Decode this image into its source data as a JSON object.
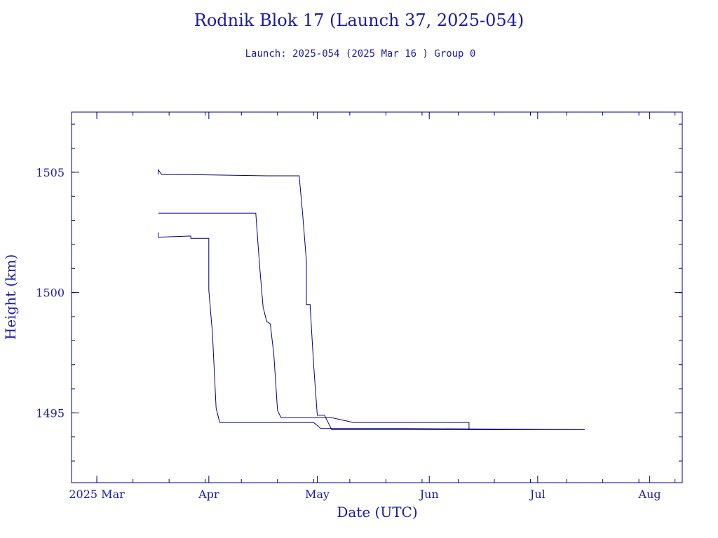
{
  "chart_data": {
    "type": "line",
    "title": "Rodnik Blok 17 (Launch 37, 2025-054)",
    "subtitle": "Launch: 2025-054  (2025 Mar 16 )  Group 0",
    "xlabel": "Date (UTC)",
    "ylabel": "Height (km)",
    "xlim": [
      "2025-02-22",
      "2025-08-10"
    ],
    "ylim": [
      1492.1,
      1507.5
    ],
    "x_ticks": [
      "2025-03-01",
      "2025-04-01",
      "2025-05-01",
      "2025-06-01",
      "2025-07-01",
      "2025-08-01"
    ],
    "x_tick_labels": [
      "2025 Mar",
      "Apr",
      "May",
      "Jun",
      "Jul",
      "Aug"
    ],
    "y_ticks": [
      1495,
      1500,
      1505
    ],
    "y_tick_labels": [
      "1495",
      "1500",
      "1505"
    ],
    "grid": false,
    "color": "#00008b",
    "series": [
      {
        "x": [
          "2025-03-18",
          "2025-03-18",
          "2025-03-19",
          "2025-03-27",
          "2025-04-17",
          "2025-04-26",
          "2025-04-27",
          "2025-04-28",
          "2025-04-28",
          "2025-04-29",
          "2025-04-30",
          "2025-05-01",
          "2025-05-03",
          "2025-05-05",
          "2025-06-12",
          "2025-07-14"
        ],
        "y": [
          1504.9,
          1505.1,
          1504.9,
          1504.9,
          1504.85,
          1504.85,
          1503.2,
          1501.3,
          1499.5,
          1499.5,
          1497.0,
          1494.9,
          1494.9,
          1494.3,
          1494.3,
          1494.3
        ]
      },
      {
        "x": [
          "2025-03-18",
          "2025-03-29",
          "2025-04-14",
          "2025-04-15",
          "2025-04-16",
          "2025-04-17",
          "2025-04-18",
          "2025-04-19",
          "2025-04-20",
          "2025-04-21",
          "2025-05-05",
          "2025-05-11",
          "2025-06-12",
          "2025-06-12"
        ],
        "y": [
          1503.3,
          1503.3,
          1503.3,
          1501.2,
          1499.4,
          1498.8,
          1498.7,
          1497.4,
          1495.1,
          1494.8,
          1494.8,
          1494.6,
          1494.6,
          1494.3
        ]
      },
      {
        "x": [
          "2025-03-18",
          "2025-03-18",
          "2025-03-27",
          "2025-03-27",
          "2025-04-01",
          "2025-04-01",
          "2025-04-02",
          "2025-04-03",
          "2025-04-04",
          "2025-04-05",
          "2025-04-30",
          "2025-05-02",
          "2025-05-26",
          "2025-07-14"
        ],
        "y": [
          1502.5,
          1502.3,
          1502.35,
          1502.25,
          1502.25,
          1500.1,
          1498.3,
          1495.2,
          1494.6,
          1494.6,
          1494.6,
          1494.35,
          1494.35,
          1494.3
        ]
      }
    ]
  }
}
